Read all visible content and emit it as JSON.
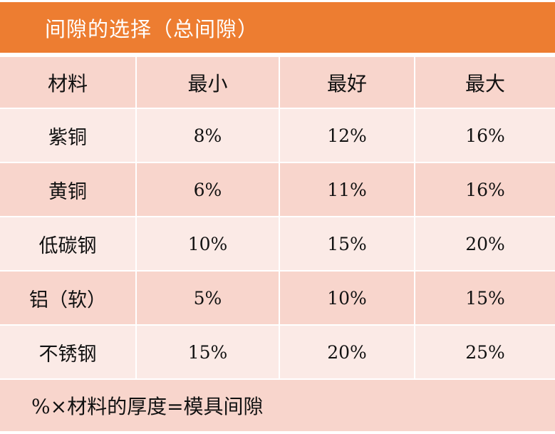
{
  "title": "间隙的选择（总间隙）",
  "colors": {
    "title_bg": "#ED7D31",
    "title_text": "#FFFFFF",
    "row_dark": "#F8D5CC",
    "row_light": "#FBEAE6",
    "divider": "#FFFFFF"
  },
  "table": {
    "headers": [
      "材料",
      "最小",
      "最好",
      "最大"
    ],
    "rows": [
      {
        "material": "紫铜",
        "min": "8%",
        "best": "12%",
        "max": "16%"
      },
      {
        "material": "黄铜",
        "min": "6%",
        "best": "11%",
        "max": "16%"
      },
      {
        "material": "低碳钢",
        "min": "10%",
        "best": "15%",
        "max": "20%"
      },
      {
        "material": "铝（软）",
        "min": "5%",
        "best": "10%",
        "max": "15%"
      },
      {
        "material": "不锈钢",
        "min": "15%",
        "best": "20%",
        "max": "25%"
      }
    ]
  },
  "footer": {
    "formula": "%×材料的厚度=模具间隙"
  }
}
